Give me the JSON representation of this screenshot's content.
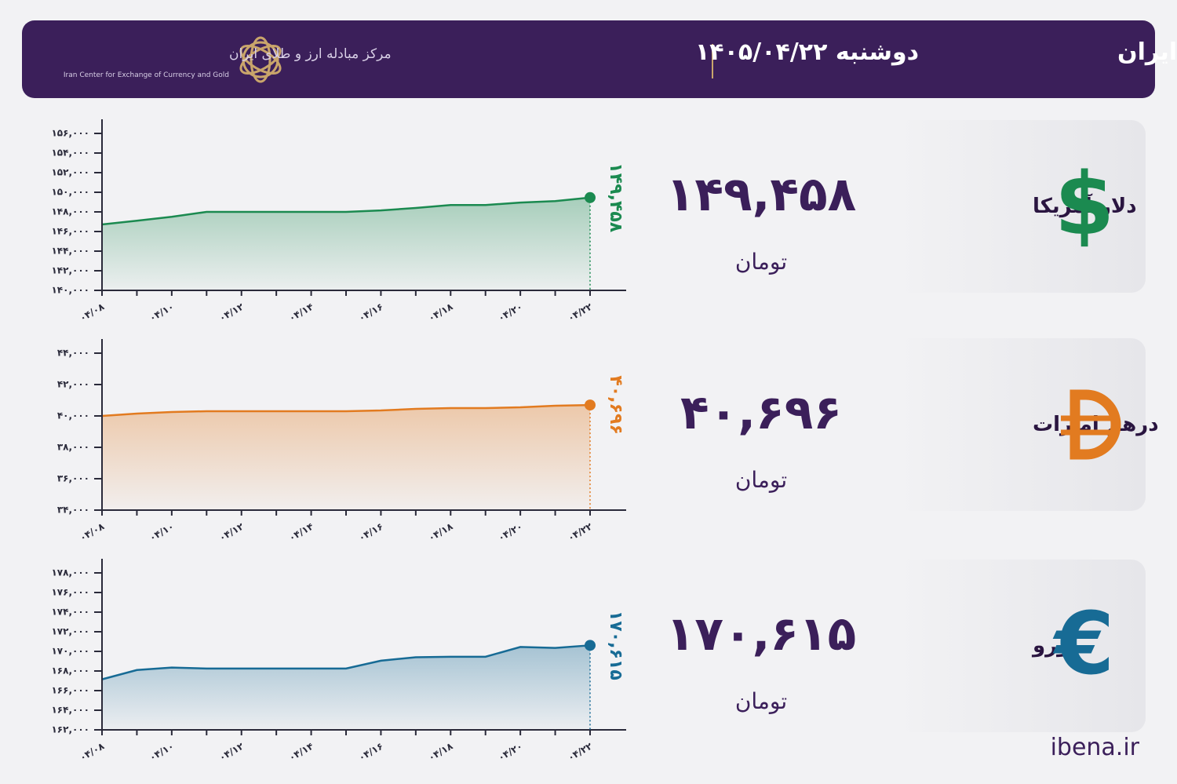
{
  "header": {
    "title": "نرخ قیمت ارز مرکز مبادله ایران",
    "date": "دوشنبه ۱۴۰۵/۰۴/۲۲",
    "logo_fa": "مرکز مبادله ارز و طلای ایران",
    "logo_en": "Iran Center for Exchange of Currency and Gold"
  },
  "cards": [
    {
      "name": "دلار آمریکا",
      "price": "۱۴۹,۴۵۸",
      "unit": "تومان",
      "symbol": "$"
    },
    {
      "name": "درهم امارات",
      "price": "۴۰,۶۹۶",
      "unit": "تومان"
    },
    {
      "name": "یورو",
      "price": "۱۷۰,۶۱۵",
      "unit": "تومان",
      "symbol": "€"
    }
  ],
  "footer": "ibena.ir",
  "chart_data": [
    {
      "type": "line",
      "categories": [
        "۰۴/۰۸",
        null,
        "۰۴/۱۰",
        null,
        "۰۴/۱۲",
        null,
        "۰۴/۱۴",
        null,
        "۰۴/۱۶",
        null,
        "۰۴/۱۸",
        null,
        "۰۴/۲۰",
        null,
        "۰۴/۲۲"
      ],
      "series": [
        {
          "color": "#1b8a50",
          "values": [
            146720,
            147100,
            147500,
            148000,
            148000,
            148000,
            148000,
            148000,
            148150,
            148400,
            148700,
            148700,
            148950,
            149100,
            149458
          ],
          "value_labels": [
            null,
            null,
            null,
            null,
            null,
            null,
            null,
            null,
            null,
            null,
            null,
            null,
            null,
            null,
            "۱۴۹,۴۵۸"
          ]
        }
      ],
      "ylim": [
        140000,
        156000
      ],
      "yticks": [
        {
          "value": 140000,
          "label": "۱۴۰,۰۰۰"
        },
        {
          "value": 142000,
          "label": "۱۴۲,۰۰۰"
        },
        {
          "value": 144000,
          "label": "۱۴۴,۰۰۰"
        },
        {
          "value": 146000,
          "label": "۱۴۶,۰۰۰"
        },
        {
          "value": 148000,
          "label": "۱۴۸,۰۰۰"
        },
        {
          "value": 150000,
          "label": "۱۵۰,۰۰۰"
        },
        {
          "value": 152000,
          "label": "۱۵۲,۰۰۰"
        },
        {
          "value": 154000,
          "label": "۱۵۴,۰۰۰"
        },
        {
          "value": 156000,
          "label": "۱۵۶,۰۰۰"
        }
      ]
    },
    {
      "type": "line",
      "categories": [
        "۰۴/۰۸",
        null,
        "۰۴/۱۰",
        null,
        "۰۴/۱۲",
        null,
        "۰۴/۱۴",
        null,
        "۰۴/۱۶",
        null,
        "۰۴/۱۸",
        null,
        "۰۴/۲۰",
        null,
        "۰۴/۲۲"
      ],
      "series": [
        {
          "color": "#e27b20",
          "values": [
            40000,
            40150,
            40250,
            40300,
            40300,
            40300,
            40300,
            40300,
            40350,
            40450,
            40500,
            40500,
            40550,
            40650,
            40696
          ],
          "value_labels": [
            null,
            null,
            null,
            null,
            null,
            null,
            null,
            null,
            null,
            null,
            null,
            null,
            null,
            null,
            "۴۰,۶۹۶"
          ]
        }
      ],
      "ylim": [
        34000,
        44000
      ],
      "yticks": [
        {
          "value": 34000,
          "label": "۳۴,۰۰۰"
        },
        {
          "value": 36000,
          "label": "۳۶,۰۰۰"
        },
        {
          "value": 38000,
          "label": "۳۸,۰۰۰"
        },
        {
          "value": 40000,
          "label": "۴۰,۰۰۰"
        },
        {
          "value": 42000,
          "label": "۴۲,۰۰۰"
        },
        {
          "value": 44000,
          "label": "۴۴,۰۰۰"
        }
      ]
    },
    {
      "type": "line",
      "categories": [
        "۰۴/۰۸",
        null,
        "۰۴/۱۰",
        null,
        "۰۴/۱۲",
        null,
        "۰۴/۱۴",
        null,
        "۰۴/۱۶",
        null,
        "۰۴/۱۸",
        null,
        "۰۴/۲۰",
        null,
        "۰۴/۲۲"
      ],
      "series": [
        {
          "color": "#176b95",
          "values": [
            167150,
            168100,
            168350,
            168250,
            168250,
            168250,
            168250,
            168250,
            169050,
            169400,
            169450,
            169450,
            170450,
            170350,
            170615
          ],
          "value_labels": [
            null,
            null,
            null,
            null,
            null,
            null,
            null,
            null,
            null,
            null,
            null,
            null,
            null,
            null,
            "۱۷۰,۶۱۵"
          ]
        }
      ],
      "ylim": [
        162000,
        178000
      ],
      "yticks": [
        {
          "value": 162000,
          "label": "۱۶۲,۰۰۰"
        },
        {
          "value": 164000,
          "label": "۱۶۴,۰۰۰"
        },
        {
          "value": 166000,
          "label": "۱۶۶,۰۰۰"
        },
        {
          "value": 168000,
          "label": "۱۶۸,۰۰۰"
        },
        {
          "value": 170000,
          "label": "۱۷۰,۰۰۰"
        },
        {
          "value": 172000,
          "label": "۱۷۲,۰۰۰"
        },
        {
          "value": 174000,
          "label": "۱۷۴,۰۰۰"
        },
        {
          "value": 176000,
          "label": "۱۷۶,۰۰۰"
        },
        {
          "value": 178000,
          "label": "۱۷۸,۰۰۰"
        }
      ]
    }
  ]
}
